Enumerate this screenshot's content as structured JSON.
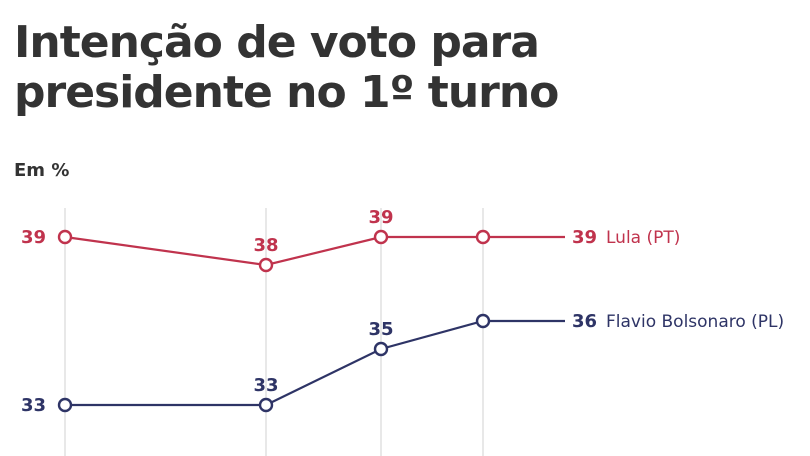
{
  "header": {
    "title_line1": "Intenção de voto para",
    "title_line2": "presidente no 1º turno",
    "unit": "Em %"
  },
  "colors": {
    "lula": "#c0334d",
    "flavio": "#2e3466",
    "grid": "#d9d9d9",
    "text": "#333333"
  },
  "chart_data": {
    "type": "line",
    "x": [
      1,
      2,
      3,
      4
    ],
    "ylabel": "Em %",
    "ylim": [
      32,
      40
    ],
    "grid": "vertical",
    "series": [
      {
        "name": "Lula (PT)",
        "values": [
          39,
          38,
          39,
          39
        ],
        "labels": [
          "39",
          "38",
          "39",
          "39"
        ],
        "color": "#c0334d"
      },
      {
        "name": "Flavio Bolsonaro (PL)",
        "values": [
          33,
          33,
          35,
          36
        ],
        "labels": [
          "33",
          "33",
          "35",
          "36"
        ],
        "color": "#2e3466"
      }
    ]
  }
}
